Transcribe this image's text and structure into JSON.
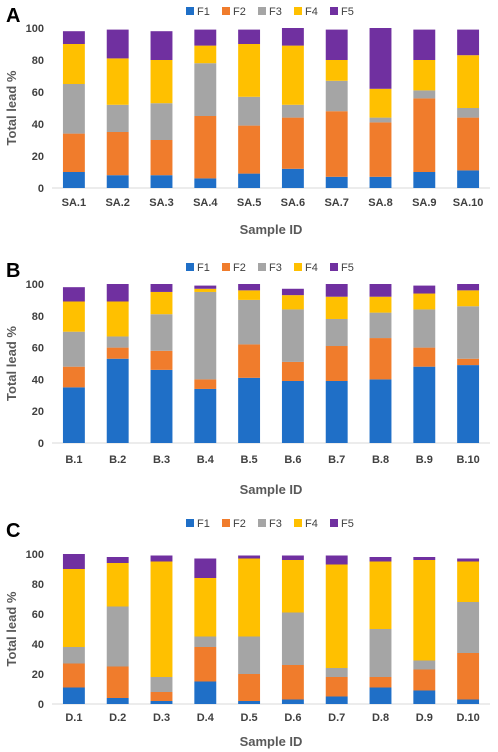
{
  "colors": {
    "F1": "#1f6fc7",
    "F2": "#f07c2c",
    "F3": "#a5a5a5",
    "F4": "#ffc000",
    "F5": "#7030a0"
  },
  "chart_data": [
    {
      "panel": "A",
      "type": "bar",
      "stacked": true,
      "legend_position": "top",
      "xlabel": "Sample ID",
      "ylabel": "Total lead %",
      "ylim": [
        0,
        100
      ],
      "yticks": [
        0,
        20,
        40,
        60,
        80,
        100
      ],
      "categories": [
        "SA.1",
        "SA.2",
        "SA.3",
        "SA.4",
        "SA.5",
        "SA.6",
        "SA.7",
        "SA.8",
        "SA.9",
        "SA.10"
      ],
      "series": [
        {
          "name": "F1",
          "values": [
            10,
            8,
            8,
            6,
            9,
            12,
            7,
            7,
            10,
            11
          ]
        },
        {
          "name": "F2",
          "values": [
            24,
            27,
            22,
            39,
            30,
            32,
            41,
            34,
            46,
            33
          ]
        },
        {
          "name": "F3",
          "values": [
            31,
            17,
            23,
            33,
            18,
            8,
            19,
            3,
            5,
            6
          ]
        },
        {
          "name": "F4",
          "values": [
            25,
            29,
            27,
            11,
            33,
            37,
            13,
            18,
            19,
            33
          ]
        },
        {
          "name": "F5",
          "values": [
            8,
            18,
            18,
            10,
            9,
            11,
            19,
            38,
            19,
            16
          ]
        }
      ]
    },
    {
      "panel": "B",
      "type": "bar",
      "stacked": true,
      "legend_position": "top",
      "xlabel": "Sample ID",
      "ylabel": "Total lead %",
      "ylim": [
        0,
        100
      ],
      "yticks": [
        0,
        20,
        40,
        60,
        80,
        100
      ],
      "categories": [
        "B.1",
        "B.2",
        "B.3",
        "B.4",
        "B.5",
        "B.6",
        "B.7",
        "B.8",
        "B.9",
        "B.10"
      ],
      "series": [
        {
          "name": "F1",
          "values": [
            35,
            53,
            46,
            34,
            41,
            39,
            39,
            40,
            48,
            49
          ]
        },
        {
          "name": "F2",
          "values": [
            13,
            7,
            12,
            6,
            21,
            12,
            22,
            26,
            12,
            4
          ]
        },
        {
          "name": "F3",
          "values": [
            22,
            7,
            23,
            55,
            28,
            33,
            17,
            16,
            24,
            33
          ]
        },
        {
          "name": "F4",
          "values": [
            19,
            22,
            14,
            2,
            6,
            9,
            14,
            10,
            10,
            10
          ]
        },
        {
          "name": "F5",
          "values": [
            9,
            11,
            5,
            2,
            4,
            4,
            8,
            8,
            5,
            4
          ]
        }
      ]
    },
    {
      "panel": "C",
      "type": "bar",
      "stacked": true,
      "legend_position": "top",
      "xlabel": "Sample ID",
      "ylabel": "Total lead %",
      "ylim": [
        0,
        100
      ],
      "yticks": [
        0,
        20,
        40,
        60,
        80,
        100
      ],
      "categories": [
        "D.1",
        "D.2",
        "D.3",
        "D.4",
        "D.5",
        "D.6",
        "D.7",
        "D.8",
        "D.9",
        "D.10"
      ],
      "series": [
        {
          "name": "F1",
          "values": [
            11,
            4,
            2,
            15,
            2,
            3,
            5,
            11,
            9,
            3
          ]
        },
        {
          "name": "F2",
          "values": [
            16,
            21,
            6,
            23,
            18,
            23,
            13,
            7,
            14,
            31
          ]
        },
        {
          "name": "F3",
          "values": [
            11,
            40,
            10,
            7,
            25,
            35,
            6,
            32,
            6,
            34
          ]
        },
        {
          "name": "F4",
          "values": [
            52,
            29,
            77,
            39,
            52,
            35,
            69,
            45,
            67,
            27
          ]
        },
        {
          "name": "F5",
          "values": [
            10,
            4,
            4,
            13,
            2,
            3,
            6,
            3,
            2,
            2
          ]
        }
      ]
    }
  ]
}
